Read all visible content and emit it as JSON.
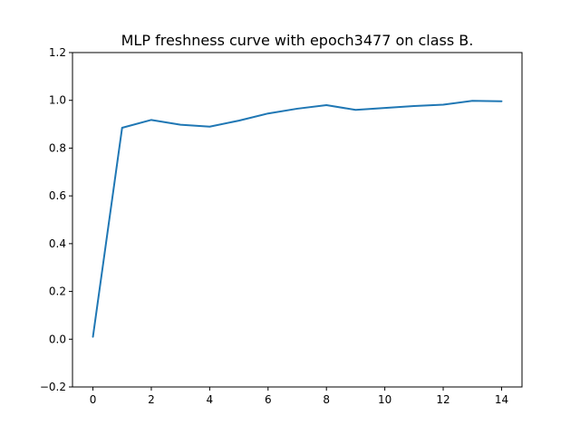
{
  "chart_data": {
    "type": "line",
    "title": "MLP freshness curve with epoch3477 on class B.",
    "xlabel": "",
    "ylabel": "",
    "xlim": [
      -0.7,
      14.7
    ],
    "ylim": [
      -0.2,
      1.2
    ],
    "xticks": [
      0,
      2,
      4,
      6,
      8,
      10,
      12,
      14
    ],
    "yticks": [
      -0.2,
      0.0,
      0.2,
      0.4,
      0.6,
      0.8,
      1.0,
      1.2
    ],
    "xtick_labels": [
      "0",
      "2",
      "4",
      "6",
      "8",
      "10",
      "12",
      "14"
    ],
    "ytick_labels": [
      "−0.2",
      "0.0",
      "0.2",
      "0.4",
      "0.6",
      "0.8",
      "1.0",
      "1.2"
    ],
    "grid": false,
    "series": [
      {
        "color": "#1f77b4",
        "x": [
          0,
          1,
          2,
          3,
          4,
          5,
          6,
          7,
          8,
          9,
          10,
          11,
          12,
          13,
          14
        ],
        "y": [
          0.01,
          0.885,
          0.918,
          0.898,
          0.89,
          0.915,
          0.945,
          0.965,
          0.98,
          0.96,
          0.968,
          0.976,
          0.982,
          0.998,
          0.996
        ]
      }
    ]
  }
}
